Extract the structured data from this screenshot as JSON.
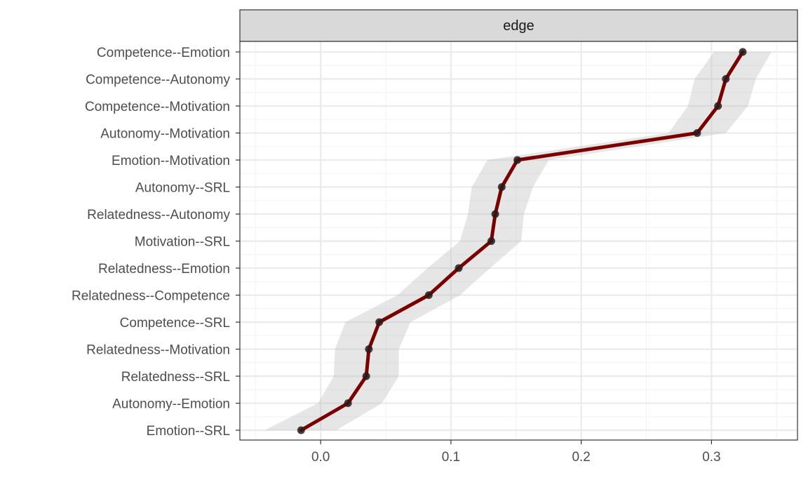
{
  "chart_data": {
    "type": "line",
    "strip_label": "edge",
    "title": "",
    "xlabel": "",
    "ylabel": "",
    "xlim": [
      -0.062,
      0.366
    ],
    "x_ticks": [
      0.0,
      0.1,
      0.2,
      0.3
    ],
    "x_tick_labels": [
      "0.0",
      "0.1",
      "0.2",
      "0.3"
    ],
    "grid": true,
    "categories": [
      "Competence--Emotion",
      "Competence--Autonomy",
      "Competence--Motivation",
      "Autonomy--Motivation",
      "Emotion--Motivation",
      "Autonomy--SRL",
      "Relatedness--Autonomy",
      "Motivation--SRL",
      "Relatedness--Emotion",
      "Relatedness--Competence",
      "Competence--SRL",
      "Relatedness--Motivation",
      "Relatedness--SRL",
      "Autonomy--Emotion",
      "Emotion--SRL"
    ],
    "series": [
      {
        "values": [
          0.324,
          0.311,
          0.305,
          0.289,
          0.151,
          0.139,
          0.134,
          0.131,
          0.106,
          0.083,
          0.045,
          0.037,
          0.035,
          0.021,
          -0.015
        ],
        "ci_lower": [
          0.302,
          0.287,
          0.282,
          0.267,
          0.128,
          0.116,
          0.113,
          0.107,
          0.082,
          0.059,
          0.019,
          0.011,
          0.01,
          -0.002,
          -0.043
        ],
        "ci_upper": [
          0.346,
          0.334,
          0.328,
          0.311,
          0.175,
          0.163,
          0.156,
          0.154,
          0.13,
          0.107,
          0.069,
          0.06,
          0.06,
          0.047,
          0.012
        ]
      }
    ],
    "colors": {
      "line": "#7a0000",
      "points": "#2b1a1a",
      "ci_band": "#b8b8b8",
      "strip_bg": "#d9d9d9",
      "panel_border": "#333333",
      "grid_major": "#ebebeb",
      "grid_minor": "#f4f4f4"
    }
  }
}
